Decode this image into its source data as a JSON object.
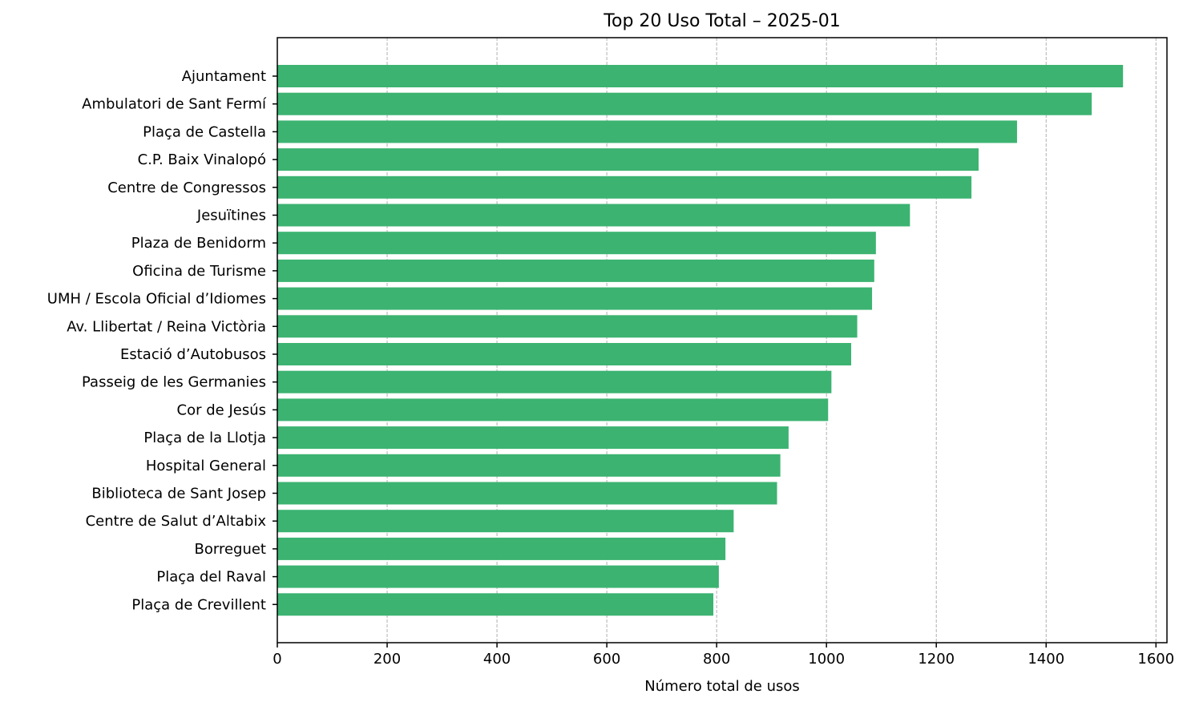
{
  "chart_data": {
    "type": "bar",
    "orientation": "horizontal",
    "title": "Top 20 Uso Total – 2025-01",
    "xlabel": "Número total de usos",
    "ylabel": "",
    "xlim": [
      0,
      1620
    ],
    "xticks": [
      0,
      200,
      400,
      600,
      800,
      1000,
      1200,
      1400,
      1600
    ],
    "grid": "x-dashed",
    "bar_color": "#3cb371",
    "categories": [
      "Ajuntament",
      "Ambulatori de Sant Fermí",
      "Plaça de Castella",
      "C.P. Baix Vinalopó",
      "Centre de Congressos",
      "Jesuïtines",
      "Plaza de Benidorm",
      "Oficina de Turisme",
      "UMH / Escola Oficial d’Idiomes",
      "Av. Llibertat / Reina Victòria",
      "Estació d’Autobusos",
      "Passeig de les Germanies",
      "Cor de Jesús",
      "Plaça de la Llotja",
      "Hospital General",
      "Biblioteca de Sant Josep",
      "Centre de Salut d’Altabix",
      "Borreguet",
      "Plaça del Raval",
      "Plaça de Crevillent"
    ],
    "values": [
      1540,
      1483,
      1347,
      1277,
      1264,
      1152,
      1090,
      1087,
      1083,
      1056,
      1045,
      1009,
      1003,
      931,
      916,
      910,
      831,
      816,
      804,
      794
    ]
  }
}
